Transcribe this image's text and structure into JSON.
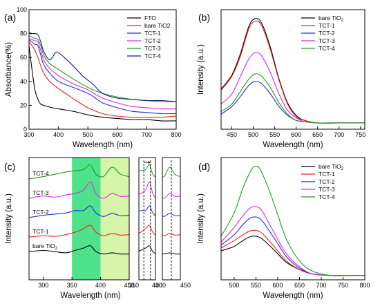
{
  "chart_data": [
    {
      "panel": "(a)",
      "type": "line",
      "xlabel": "Wavelength (nm)",
      "ylabel": "Absorbance(%)",
      "xlim": [
        300,
        800
      ],
      "ylim": [
        0,
        100
      ],
      "xticks": [
        300,
        400,
        500,
        600,
        700,
        800
      ],
      "yticks": [
        0,
        20,
        40,
        60,
        80,
        100
      ],
      "legend": "top-right",
      "series": [
        {
          "name": "FTO",
          "color": "#000000",
          "x": [
            300,
            310,
            320,
            330,
            340,
            350,
            370,
            400,
            450,
            500,
            550,
            600,
            650,
            700,
            750,
            800
          ],
          "y": [
            70,
            50,
            33,
            25,
            21,
            20,
            18.5,
            17,
            15,
            12,
            10,
            9,
            8,
            8,
            7,
            7
          ]
        },
        {
          "name": "bare TiO2",
          "color": "#e8221c",
          "x": [
            300,
            310,
            320,
            330,
            340,
            350,
            370,
            400,
            430,
            460,
            500,
            550,
            600,
            650,
            700,
            750,
            800
          ],
          "y": [
            73,
            70,
            66,
            60,
            53,
            47,
            40,
            34,
            29,
            24,
            18,
            13,
            11,
            10,
            10,
            10,
            11
          ]
        },
        {
          "name": "TCT-1",
          "color": "#1f2ae0",
          "x": [
            300,
            310,
            320,
            330,
            340,
            350,
            370,
            400,
            450,
            500,
            520,
            550,
            600,
            650,
            700,
            750,
            800
          ],
          "y": [
            75,
            73,
            71,
            70,
            62,
            54,
            47,
            40,
            35,
            30,
            27,
            22,
            18,
            15,
            14,
            13,
            13
          ]
        },
        {
          "name": "TCT-2",
          "color": "#e521e5",
          "x": [
            300,
            310,
            320,
            330,
            340,
            350,
            370,
            400,
            450,
            500,
            520,
            550,
            600,
            650,
            700,
            750,
            800
          ],
          "y": [
            76,
            75,
            74,
            73,
            66,
            58,
            51,
            45,
            38,
            33,
            30,
            26,
            22,
            19,
            18,
            17,
            17
          ]
        },
        {
          "name": "TCT-3",
          "color": "#1e9a1e",
          "x": [
            300,
            310,
            320,
            330,
            340,
            350,
            370,
            400,
            450,
            500,
            550,
            600,
            650,
            700,
            750,
            800
          ],
          "y": [
            78,
            77,
            76,
            75,
            70,
            62,
            55,
            50,
            42,
            35,
            30,
            27,
            25,
            24,
            23,
            23
          ]
        },
        {
          "name": "TCT-4",
          "color": "#151a80",
          "x": [
            300,
            310,
            320,
            330,
            340,
            350,
            370,
            390,
            400,
            420,
            450,
            480,
            500,
            520,
            550,
            600,
            650,
            700,
            750,
            800
          ],
          "y": [
            81,
            80,
            80,
            79,
            73,
            65,
            58,
            64,
            64,
            60,
            53,
            45,
            41,
            37,
            30,
            26,
            25,
            24,
            24,
            23
          ]
        }
      ]
    },
    {
      "panel": "(b)",
      "type": "line",
      "xlabel": "Wavelength (nm)",
      "ylabel": "Intensity (a.u.)",
      "xlim": [
        425,
        760
      ],
      "xticks": [
        450,
        500,
        550,
        600,
        650,
        700,
        750
      ],
      "legend": "top-right",
      "series": [
        {
          "name": "bare TiO",
          "name_sub": "2",
          "color": "#000000",
          "x": [
            425,
            450,
            470,
            490,
            505,
            520,
            540,
            560,
            580,
            600,
            620,
            650,
            700,
            760
          ],
          "y": [
            32,
            43,
            60,
            82,
            88,
            84,
            65,
            40,
            21,
            11,
            7,
            5,
            5,
            5
          ]
        },
        {
          "name": "TCT-1",
          "color": "#e8221c",
          "x": [
            425,
            450,
            470,
            490,
            505,
            520,
            540,
            560,
            580,
            600,
            620,
            650,
            700,
            760
          ],
          "y": [
            31,
            42,
            58,
            80,
            86,
            82,
            63,
            39,
            20,
            10,
            7,
            5,
            5,
            5
          ]
        },
        {
          "name": "TCT-2",
          "color": "#1f2ae0",
          "x": [
            425,
            450,
            470,
            490,
            505,
            520,
            540,
            560,
            580,
            600,
            620,
            650,
            700,
            760
          ],
          "y": [
            12,
            18,
            26,
            35,
            38,
            36,
            28,
            18,
            11,
            7,
            6,
            5,
            5,
            5
          ]
        },
        {
          "name": "TCT-3",
          "color": "#e521e5",
          "x": [
            425,
            450,
            470,
            490,
            505,
            520,
            540,
            560,
            580,
            600,
            620,
            650,
            700,
            760
          ],
          "y": [
            20,
            28,
            42,
            56,
            61,
            58,
            45,
            28,
            15,
            9,
            6,
            5,
            5,
            5
          ]
        },
        {
          "name": "TCT-4",
          "color": "#1e9a1e",
          "x": [
            425,
            450,
            470,
            490,
            505,
            520,
            540,
            560,
            580,
            600,
            620,
            650,
            700,
            760
          ],
          "y": [
            14,
            20,
            30,
            40,
            44,
            42,
            33,
            21,
            12,
            7,
            6,
            5,
            5,
            5
          ]
        }
      ]
    },
    {
      "panel": "(c)",
      "type": "line",
      "xlabel": "Wavelength (nm)",
      "ylabel": "Intensity (a.u.)",
      "xlim": [
        275,
        450
      ],
      "xticks": [
        300,
        350,
        400,
        450
      ],
      "bands": [
        {
          "from": 350,
          "to": 400,
          "color": "#4ee38a"
        },
        {
          "from": 400,
          "to": 450,
          "color": "#d6f5a8"
        }
      ],
      "legend": "inline-left",
      "series": [
        {
          "name": "bare TiO",
          "name_sub": "2",
          "color": "#000000",
          "offset": 0,
          "x": [
            275,
            300,
            320,
            340,
            355,
            370,
            382,
            392,
            405,
            420,
            435,
            450
          ],
          "y": [
            2,
            2.5,
            2,
            1.5,
            2.5,
            3.5,
            4.5,
            2,
            1,
            1.5,
            1,
            1
          ]
        },
        {
          "name": "TCT-1",
          "color": "#e8221c",
          "offset": 1,
          "x": [
            275,
            300,
            320,
            340,
            355,
            370,
            382,
            392,
            405,
            420,
            435,
            450
          ],
          "y": [
            0,
            0.5,
            0.3,
            1,
            2,
            3.5,
            5,
            2,
            0.5,
            1.5,
            0.8,
            1
          ]
        },
        {
          "name": "TCT-2",
          "color": "#1f2ae0",
          "offset": 2,
          "x": [
            275,
            300,
            320,
            340,
            355,
            370,
            382,
            392,
            405,
            420,
            435,
            450
          ],
          "y": [
            0,
            1,
            1.5,
            2,
            3,
            3,
            5,
            2,
            0.5,
            1.8,
            0.8,
            1
          ]
        },
        {
          "name": "TCT-3",
          "color": "#e521e5",
          "offset": 3,
          "x": [
            275,
            300,
            320,
            340,
            355,
            370,
            382,
            392,
            405,
            420,
            435,
            450
          ],
          "y": [
            0,
            1,
            0.5,
            1.5,
            2,
            3.5,
            7,
            2,
            0,
            2,
            0.8,
            1
          ]
        },
        {
          "name": "TCT-4",
          "color": "#1e9a1e",
          "offset": 4,
          "x": [
            275,
            300,
            320,
            340,
            355,
            370,
            382,
            392,
            405,
            420,
            435,
            450
          ],
          "y": [
            0,
            1,
            2,
            3,
            3.5,
            4,
            6,
            2,
            1,
            5,
            2,
            1
          ]
        }
      ],
      "insets": [
        {
          "xlim": [
            350,
            400
          ],
          "xticks": [
            350,
            400
          ],
          "dashed_lines": [
            365,
            385
          ]
        },
        {
          "xlim": [
            400,
            450
          ],
          "xticks": [
            400,
            450
          ],
          "dashed_lines": [
            425
          ]
        }
      ]
    },
    {
      "panel": "(d)",
      "type": "line",
      "xlabel": "Wavelength (nm)",
      "ylabel": "Intensity (a.u.)",
      "xlim": [
        470,
        800
      ],
      "xticks": [
        500,
        550,
        600,
        650,
        700,
        750,
        800
      ],
      "legend": "top-right",
      "series": [
        {
          "name": "bare TiO",
          "name_sub": "2",
          "color": "#000000",
          "x": [
            470,
            500,
            520,
            540,
            560,
            580,
            600,
            620,
            650,
            680,
            720,
            760,
            800
          ],
          "y": [
            20,
            23,
            27,
            30,
            29,
            24,
            18,
            12,
            7,
            4,
            3,
            3,
            3
          ]
        },
        {
          "name": "TCT-1",
          "color": "#e8221c",
          "x": [
            470,
            500,
            520,
            540,
            560,
            580,
            600,
            620,
            650,
            680,
            720,
            760,
            800
          ],
          "y": [
            22,
            27,
            31,
            34,
            33,
            27,
            20,
            13,
            7,
            4,
            3,
            3,
            3
          ]
        },
        {
          "name": "TCT-2",
          "color": "#1f2ae0",
          "x": [
            470,
            500,
            520,
            540,
            560,
            580,
            600,
            620,
            650,
            680,
            720,
            760,
            800
          ],
          "y": [
            24,
            31,
            38,
            43,
            42,
            34,
            25,
            16,
            8,
            4,
            3,
            3,
            3
          ]
        },
        {
          "name": "TCT-3",
          "color": "#e521e5",
          "x": [
            470,
            500,
            520,
            540,
            560,
            580,
            600,
            620,
            650,
            680,
            720,
            760,
            800
          ],
          "y": [
            26,
            36,
            44,
            50,
            49,
            39,
            28,
            18,
            9,
            4,
            3,
            3,
            3
          ]
        },
        {
          "name": "TCT-4",
          "color": "#1e9a1e",
          "x": [
            470,
            500,
            520,
            540,
            550,
            560,
            580,
            600,
            620,
            650,
            680,
            720,
            760,
            800
          ],
          "y": [
            30,
            46,
            63,
            76,
            78,
            76,
            62,
            45,
            28,
            13,
            6,
            3,
            3,
            3
          ]
        }
      ]
    }
  ]
}
